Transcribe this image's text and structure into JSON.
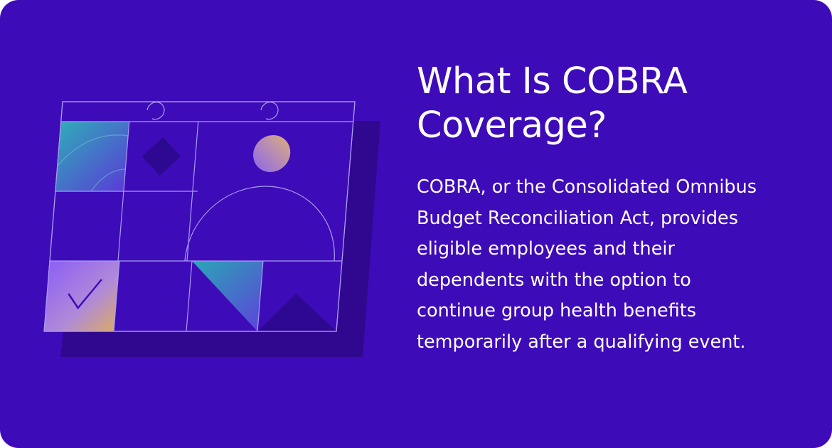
{
  "card": {
    "title": "What Is COBRA Coverage?",
    "body": "COBRA, or the Consolidated Omnibus Budget Reconciliation Act, provides eligible employees and their dependents with the option to continue group health benefits temporarily after a qualifying event."
  }
}
